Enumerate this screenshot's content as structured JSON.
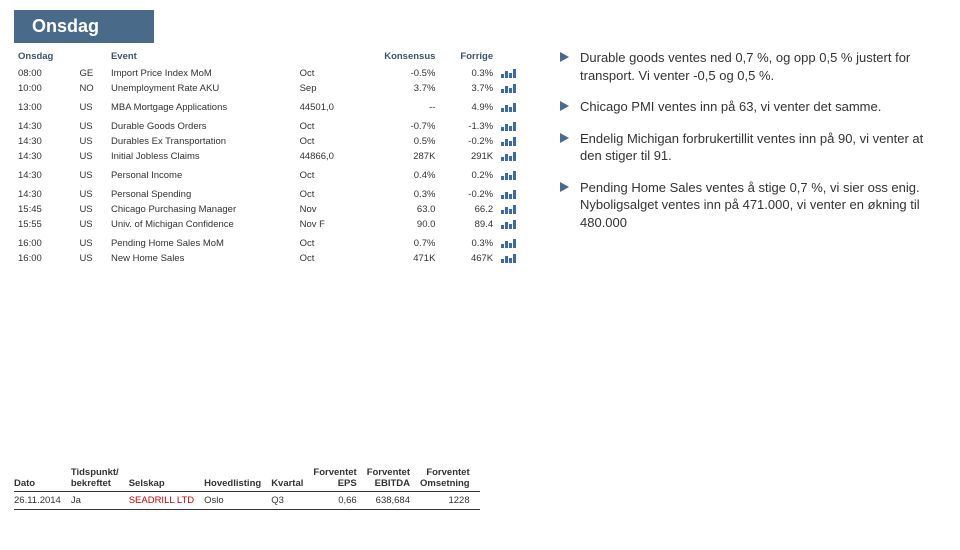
{
  "title": "Onsdag",
  "events_table": {
    "headers": [
      "Onsdag",
      "",
      "Event",
      "",
      "Konsensus",
      "Forrige",
      ""
    ],
    "groups": [
      [
        {
          "time": "08:00",
          "cc": "GE",
          "event": "Import Price Index MoM",
          "period": "Oct",
          "konsensus": "-0.5%",
          "forrige": "0.3%"
        },
        {
          "time": "10:00",
          "cc": "NO",
          "event": "Unemployment Rate AKU",
          "period": "Sep",
          "konsensus": "3.7%",
          "forrige": "3.7%"
        }
      ],
      [
        {
          "time": "13:00",
          "cc": "US",
          "event": "MBA Mortgage Applications",
          "period": "44501,0",
          "konsensus": "--",
          "forrige": "4.9%"
        }
      ],
      [
        {
          "time": "14:30",
          "cc": "US",
          "event": "Durable Goods Orders",
          "period": "Oct",
          "konsensus": "-0.7%",
          "forrige": "-1.3%"
        },
        {
          "time": "14:30",
          "cc": "US",
          "event": "Durables Ex Transportation",
          "period": "Oct",
          "konsensus": "0.5%",
          "forrige": "-0.2%"
        },
        {
          "time": "14:30",
          "cc": "US",
          "event": "Initial Jobless Claims",
          "period": "44866,0",
          "konsensus": "287K",
          "forrige": "291K"
        }
      ],
      [
        {
          "time": "14:30",
          "cc": "US",
          "event": "Personal Income",
          "period": "Oct",
          "konsensus": "0.4%",
          "forrige": "0.2%"
        }
      ],
      [
        {
          "time": "14:30",
          "cc": "US",
          "event": "Personal Spending",
          "period": "Oct",
          "konsensus": "0.3%",
          "forrige": "-0.2%"
        },
        {
          "time": "15:45",
          "cc": "US",
          "event": "Chicago Purchasing Manager",
          "period": "Nov",
          "konsensus": "63.0",
          "forrige": "66.2"
        },
        {
          "time": "15:55",
          "cc": "US",
          "event": "Univ. of Michigan Confidence",
          "period": "Nov F",
          "konsensus": "90.0",
          "forrige": "89.4"
        }
      ],
      [
        {
          "time": "16:00",
          "cc": "US",
          "event": "Pending Home Sales MoM",
          "period": "Oct",
          "konsensus": "0.7%",
          "forrige": "0.3%"
        },
        {
          "time": "16:00",
          "cc": "US",
          "event": "New Home Sales",
          "period": "Oct",
          "konsensus": "471K",
          "forrige": "467K"
        }
      ]
    ],
    "spark_color": "#3a6aa8"
  },
  "bullets": [
    "Durable goods ventes ned 0,7 %, og opp 0,5 % justert for transport. Vi venter -0,5 og 0,5 %.",
    "Chicago PMI ventes inn på 63, vi venter det samme.",
    "Endelig Michigan forbrukertillit ventes inn på 90, vi venter at den stiger til 91.",
    "Pending Home Sales ventes å stige 0,7 %, vi sier oss enig. Nyboligsalget ventes inn på 471.000, vi venter en økning til 480.000"
  ],
  "earnings_table": {
    "headers": {
      "dato": "Dato",
      "tidspunkt": "Tidspunkt/\nbekreftet",
      "selskap": "Selskap",
      "hovedlisting": "Hovedlisting",
      "kvartal": "Kvartal",
      "eps": "Forventet\nEPS",
      "ebitda": "Forventet\nEBITDA",
      "oms": "Forventet\nOmsetning"
    },
    "row": {
      "dato": "26.11.2014",
      "tidspunkt": "Ja",
      "selskap": "SEADRILL LTD",
      "hovedlisting": "Oslo",
      "kvartal": "Q3",
      "eps": "0,66",
      "ebitda": "638,684",
      "oms": "1228"
    }
  }
}
